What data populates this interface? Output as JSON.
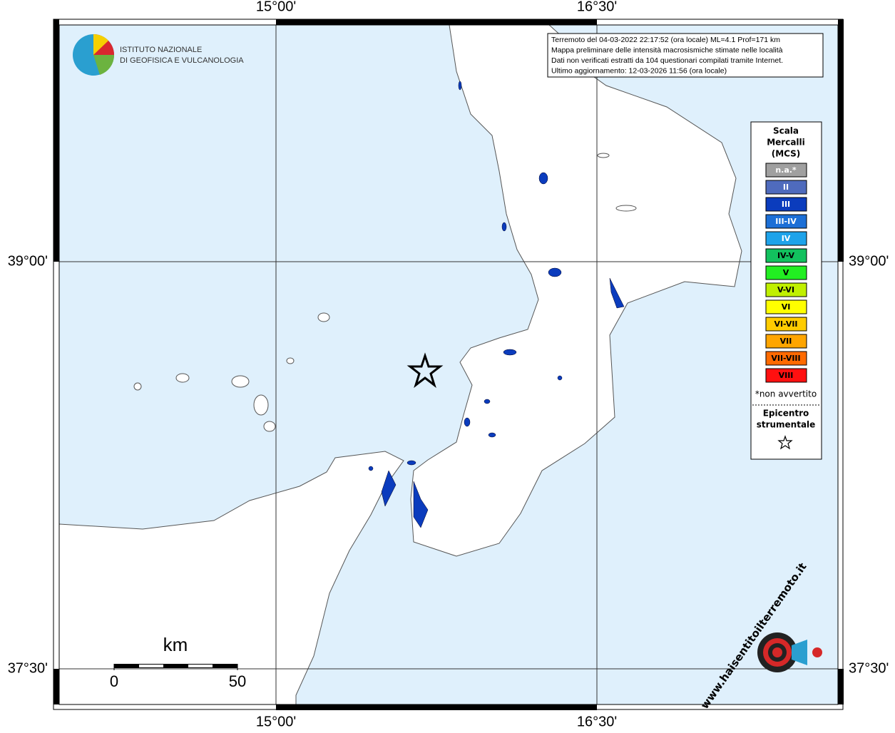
{
  "map": {
    "axis_labels": {
      "top": [
        "15°00'",
        "16°30'"
      ],
      "bottom": [
        "15°00'",
        "16°30'"
      ],
      "left": [
        "39°00'",
        "37°30'"
      ],
      "right": [
        "39°00'",
        "37°30'"
      ]
    },
    "logo": {
      "line1": "ISTITUTO NAZIONALE",
      "line2": "DI GEOFISICA E VULCANOLOGIA"
    },
    "info": [
      "Terremoto del 04-03-2022 22:17:52 (ora locale) ML=4.1 Prof=171 km",
      "Mappa preliminare delle intensità macrosismiche stimate nelle località",
      "Dati non verificati estratti da 104 questionari compilati tramite Internet.",
      "Ultimo aggiornamento: 12-03-2026 11:56 (ora locale)"
    ],
    "legend": {
      "title": [
        "Scala",
        "Mercalli",
        "(MCS)"
      ],
      "items": [
        {
          "label": "n.a.*",
          "color": "#a0a0a0",
          "text_color": "#ffffff"
        },
        {
          "label": "II",
          "color": "#4f6bbd",
          "text_color": "#ffffff"
        },
        {
          "label": "III",
          "color": "#0b3cbd",
          "text_color": "#ffffff"
        },
        {
          "label": "III-IV",
          "color": "#1c6fd6",
          "text_color": "#ffffff"
        },
        {
          "label": "IV",
          "color": "#1ea3ea",
          "text_color": "#ffffff"
        },
        {
          "label": "IV-V",
          "color": "#12c15e",
          "text_color": "#000000"
        },
        {
          "label": "V",
          "color": "#22ee22",
          "text_color": "#000000"
        },
        {
          "label": "V-VI",
          "color": "#c0f000",
          "text_color": "#000000"
        },
        {
          "label": "VI",
          "color": "#ffff00",
          "text_color": "#000000"
        },
        {
          "label": "VI-VII",
          "color": "#ffcc00",
          "text_color": "#000000"
        },
        {
          "label": "VII",
          "color": "#ffa500",
          "text_color": "#000000"
        },
        {
          "label": "VII-VIII",
          "color": "#ff6a00",
          "text_color": "#000000"
        },
        {
          "label": "VIII",
          "color": "#ff1010",
          "text_color": "#000000"
        }
      ],
      "note": "*non avvertito",
      "epicentre": [
        "Epicentro",
        "strumentale"
      ]
    },
    "scale_bar": {
      "unit": "km",
      "start": "0",
      "end": "50"
    },
    "site": "www.haisentitoilterremoto.it"
  }
}
